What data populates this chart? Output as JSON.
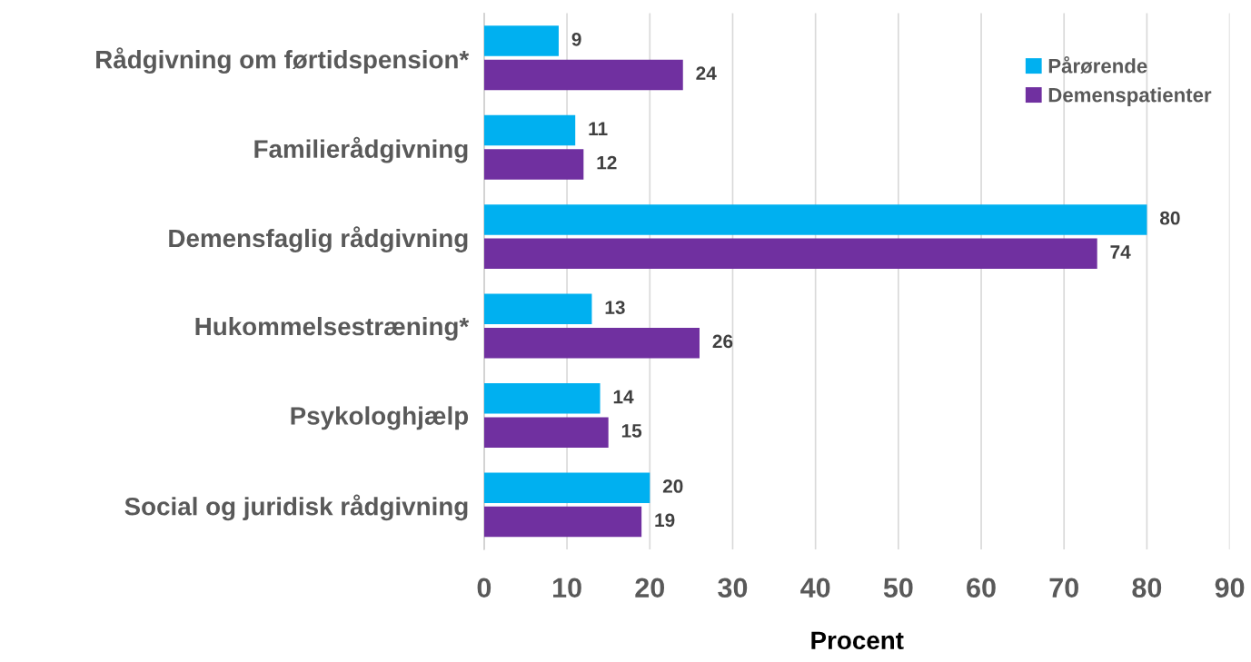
{
  "chart_data": {
    "type": "bar",
    "orientation": "horizontal",
    "xlabel": "Procent",
    "categories": [
      "Rådgivning om førtidspension*",
      "Familierådgivning",
      "Demensfaglig rådgivning",
      "Hukommelsestræning*",
      "Psykologhjælp",
      "Social og juridisk rådgivning"
    ],
    "series": [
      {
        "name": "Pårørende",
        "color": "#00b0f0",
        "values": [
          9,
          11,
          80,
          13,
          14,
          20
        ]
      },
      {
        "name": "Demenspatienter",
        "color": "#7030a0",
        "values": [
          24,
          12,
          74,
          26,
          15,
          19
        ]
      }
    ],
    "xlim": [
      0,
      90
    ],
    "xticks": [
      0,
      10,
      20,
      30,
      40,
      50,
      60,
      70,
      80,
      90
    ],
    "grid": "x",
    "legend": "top right",
    "data_labels": true
  }
}
